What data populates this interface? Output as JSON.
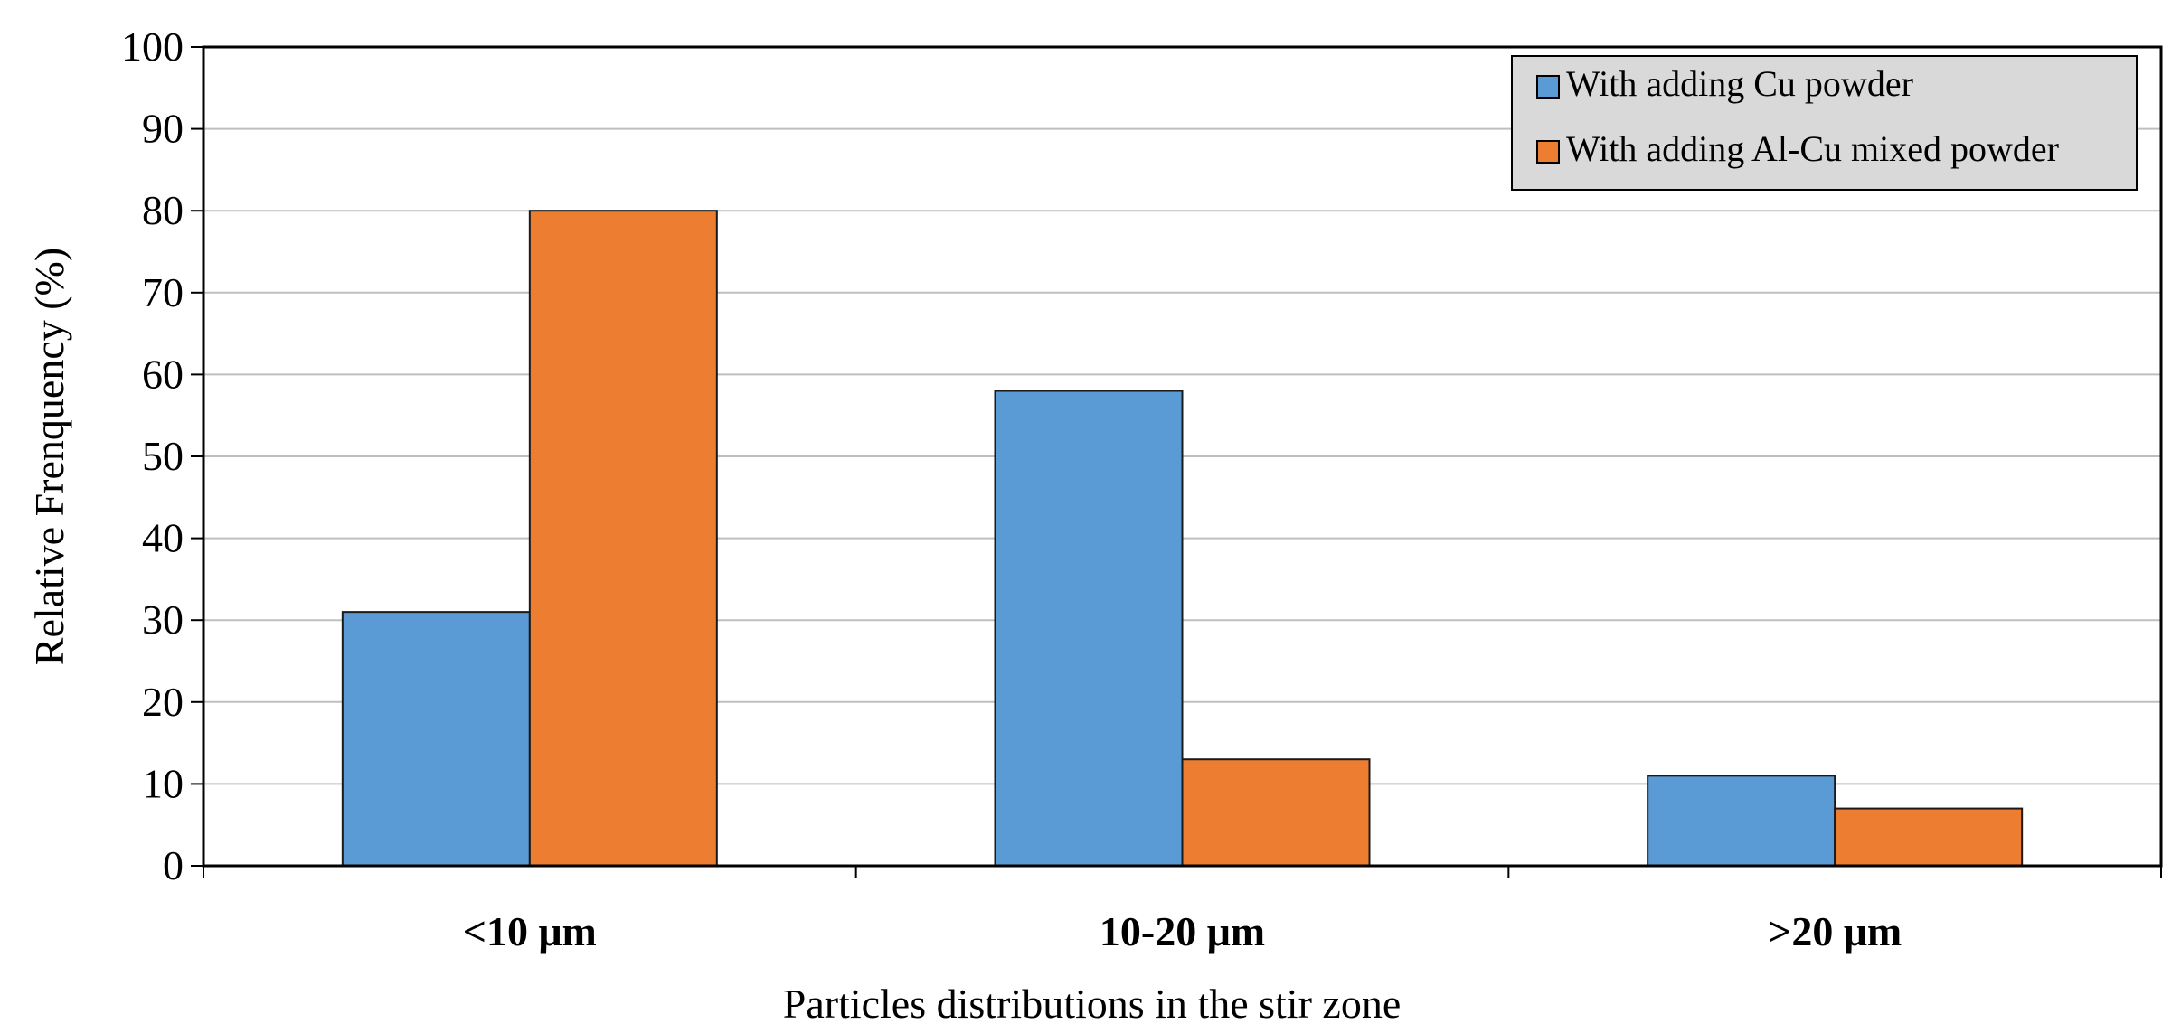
{
  "chart_data": {
    "type": "bar",
    "categories": [
      "<10 μm",
      "10-20  μm",
      ">20  μm"
    ],
    "series": [
      {
        "name": "With adding Cu powder",
        "values": [
          31,
          58,
          11
        ],
        "color": "#5B9BD5"
      },
      {
        "name": "With adding Al-Cu mixed powder",
        "values": [
          80,
          13,
          7
        ],
        "color": "#ED7D31"
      }
    ],
    "title": "",
    "xlabel": "Particles distributions in the stir zone",
    "ylabel": "Relative Frenquency (%)",
    "ylim": [
      0,
      100
    ],
    "yticks": [
      0,
      10,
      20,
      30,
      40,
      50,
      60,
      70,
      80,
      90,
      100
    ],
    "grid": true,
    "legend_position": "top-right",
    "legend_background": "#D9D9D9"
  }
}
